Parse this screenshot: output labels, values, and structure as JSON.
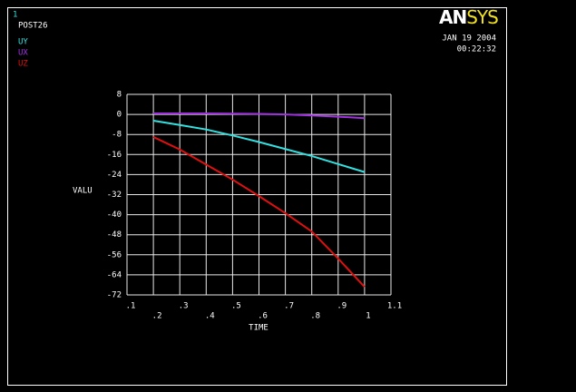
{
  "chart_data": {
    "type": "line",
    "window_label": "1",
    "program_label": "POST26",
    "logo": {
      "first": "AN",
      "second": "SYS"
    },
    "date": "JAN 19 2004",
    "time": "00:22:32",
    "xlabel": "TIME",
    "ylabel": "VALU",
    "x": [
      0.2,
      0.3,
      0.4,
      0.5,
      0.6,
      0.7,
      0.8,
      0.9,
      1.0
    ],
    "series": [
      {
        "name": "UY",
        "color": "#33e0e0",
        "values": [
          -2.5,
          -4.2,
          -6,
          -8.4,
          -11,
          -13.8,
          -16.6,
          -19.8,
          -23
        ]
      },
      {
        "name": "UX",
        "color": "#a030e0",
        "values": [
          0.4,
          0.4,
          0.4,
          0.3,
          0.2,
          0,
          -0.4,
          -0.9,
          -1.5
        ]
      },
      {
        "name": "UZ",
        "color": "#e01010",
        "values": [
          -9,
          -14,
          -20,
          -26,
          -32.6,
          -39.4,
          -46.7,
          -57.5,
          -68.8
        ]
      }
    ],
    "xlim": [
      0.1,
      1.1
    ],
    "xticks": [
      {
        "value": 0.1,
        "label": ".1"
      },
      {
        "value": 0.2,
        "label": ".2"
      },
      {
        "value": 0.3,
        "label": ".3"
      },
      {
        "value": 0.4,
        "label": ".4"
      },
      {
        "value": 0.5,
        "label": ".5"
      },
      {
        "value": 0.6,
        "label": ".6"
      },
      {
        "value": 0.7,
        "label": ".7"
      },
      {
        "value": 0.8,
        "label": ".8"
      },
      {
        "value": 0.9,
        "label": ".9"
      },
      1,
      1.1
    ],
    "ylim": [
      -72,
      8
    ],
    "yticks": [
      8,
      0,
      -8,
      -16,
      -24,
      -32,
      -40,
      -48,
      -56,
      -64,
      -72
    ],
    "grid": true
  }
}
